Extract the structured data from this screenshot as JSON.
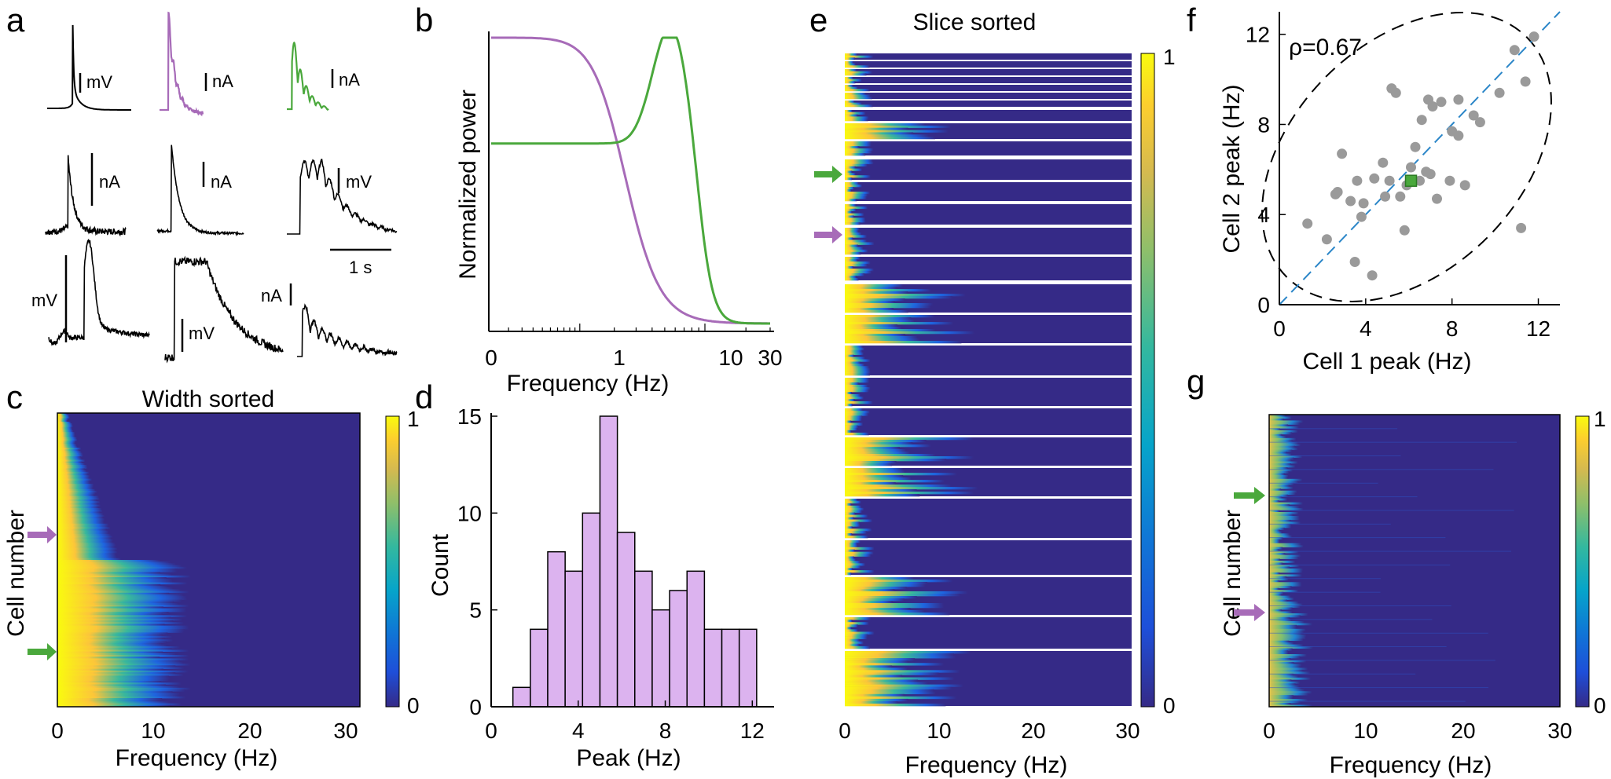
{
  "colors": {
    "purple": "#a76bb8",
    "green": "#4aa83c",
    "hist_fill": "#dcb3ef",
    "dot": "#9a9a9a",
    "navy": "#352a87",
    "yellow": "#f9fb0e"
  },
  "panel_labels": {
    "a": "a",
    "b": "b",
    "c": "c",
    "d": "d",
    "e": "e",
    "f": "f",
    "g": "g"
  },
  "panel_a": {
    "scale_labels": [
      "mV",
      "nA",
      "nA",
      "nA",
      "nA",
      "mV",
      "mV",
      "mV",
      "nA"
    ],
    "time_scale": "1 s"
  },
  "panel_b": {
    "ylabel": "Normalized power",
    "xlabel": "Frequency  (Hz)",
    "xticks": [
      "0",
      "1",
      "10",
      "30"
    ]
  },
  "panel_c": {
    "title": "Width sorted",
    "ylabel": "Cell number",
    "xlabel": "Frequency  (Hz)",
    "xticks": [
      "0",
      "10",
      "20",
      "30"
    ],
    "cbar_ticks": [
      "1",
      "0"
    ]
  },
  "panel_e": {
    "title": "Slice sorted",
    "xlabel": "Frequency  (Hz)",
    "xticks": [
      "0",
      "10",
      "20",
      "30"
    ],
    "cbar_ticks": [
      "1",
      "0"
    ]
  },
  "panel_g": {
    "ylabel": "Cell number",
    "xlabel": "Frequency  (Hz)",
    "xticks": [
      "0",
      "10",
      "20",
      "30"
    ],
    "cbar_ticks": [
      "1",
      "0"
    ]
  },
  "chart_data": [
    {
      "id": "d",
      "type": "bar",
      "title": "",
      "xlabel": "Peak (Hz)",
      "ylabel": "Count",
      "bin_edges": [
        1,
        1.8,
        2.6,
        3.4,
        4.2,
        5.0,
        5.8,
        6.6,
        7.4,
        8.2,
        9.0,
        9.8,
        10.6,
        11.4,
        12.2
      ],
      "values": [
        1,
        4,
        8,
        7,
        10,
        15,
        9,
        7,
        5,
        6,
        7,
        4,
        4,
        4
      ],
      "xlim": [
        0,
        13
      ],
      "ylim": [
        0,
        15
      ],
      "xticks": [
        "0",
        "4",
        "8",
        "12"
      ],
      "yticks": [
        "0",
        "5",
        "10",
        "15"
      ]
    },
    {
      "id": "f",
      "type": "scatter",
      "xlabel": "Cell 1 peak (Hz)",
      "ylabel": "Cell 2 peak (Hz)",
      "annotation": "ρ=0.67",
      "xlim": [
        0,
        13
      ],
      "ylim": [
        0,
        13
      ],
      "xticks": [
        "0",
        "4",
        "8",
        "12"
      ],
      "yticks": [
        "0",
        "4",
        "8",
        "12"
      ],
      "points": [
        [
          1.3,
          3.6
        ],
        [
          2.2,
          2.9
        ],
        [
          2.7,
          5.0
        ],
        [
          2.9,
          6.7
        ],
        [
          3.3,
          4.6
        ],
        [
          3.5,
          1.9
        ],
        [
          3.6,
          5.5
        ],
        [
          3.8,
          3.9
        ],
        [
          3.9,
          4.5
        ],
        [
          4.3,
          1.3
        ],
        [
          4.8,
          6.3
        ],
        [
          4.9,
          4.8
        ],
        [
          5.1,
          5.5
        ],
        [
          5.2,
          9.6
        ],
        [
          5.4,
          9.4
        ],
        [
          5.6,
          4.8
        ],
        [
          5.8,
          3.3
        ],
        [
          5.9,
          5.3
        ],
        [
          6.1,
          6.1
        ],
        [
          6.3,
          7.0
        ],
        [
          6.5,
          5.5
        ],
        [
          6.6,
          8.2
        ],
        [
          6.9,
          9.1
        ],
        [
          7.0,
          5.8
        ],
        [
          7.1,
          8.8
        ],
        [
          7.3,
          4.7
        ],
        [
          7.5,
          9.0
        ],
        [
          7.9,
          5.5
        ],
        [
          8.0,
          7.7
        ],
        [
          8.3,
          7.5
        ],
        [
          8.3,
          9.1
        ],
        [
          8.6,
          5.3
        ],
        [
          9.0,
          8.4
        ],
        [
          9.3,
          8.1
        ],
        [
          10.2,
          9.4
        ],
        [
          10.9,
          11.3
        ],
        [
          11.4,
          9.9
        ],
        [
          11.8,
          11.9
        ],
        [
          11.2,
          3.4
        ],
        [
          2.6,
          4.9
        ],
        [
          6.8,
          5.9
        ],
        [
          4.4,
          5.6
        ]
      ],
      "highlight": [
        6.1,
        5.5
      ],
      "identity_line": true
    }
  ]
}
